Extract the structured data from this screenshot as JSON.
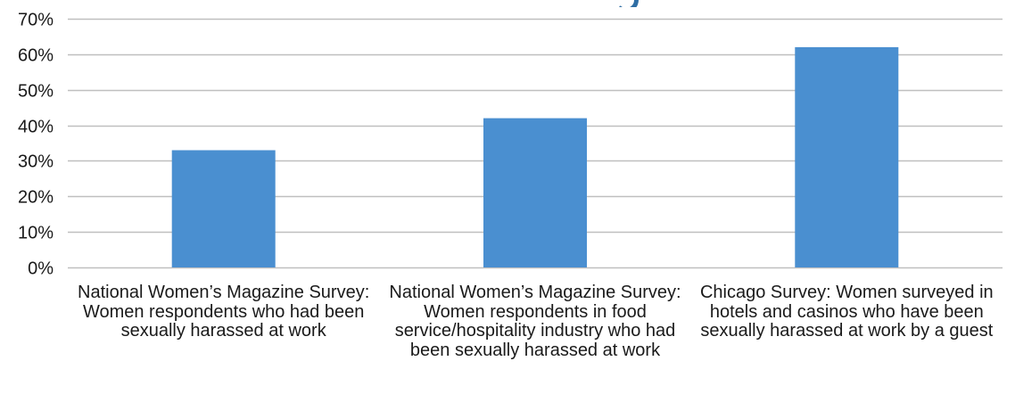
{
  "chart_data": {
    "type": "bar",
    "title": "",
    "xlabel": "",
    "ylabel": "",
    "categories": [
      "National Women’s Magazine Survey: Women respondents who had been sexually harassed at work",
      "National Women’s Magazine Survey: Women respondents in food service/hospitality industry who had been sexually harassed at work",
      "Chicago Survey: Women surveyed in hotels and casinos who have been sexually harassed at work by a guest"
    ],
    "values": [
      33,
      42,
      62
    ],
    "value_format": "percent",
    "ylim": [
      0,
      70
    ],
    "yticks": [
      "0%",
      "10%",
      "20%",
      "30%",
      "40%",
      "50%",
      "60%",
      "70%"
    ],
    "grid": true,
    "legend": "none",
    "colors": {
      "bar": "#4a8fd0",
      "grid": "#bfbfbf",
      "text": "#1a1a1a",
      "title_fragment": "#2e6da4"
    }
  }
}
